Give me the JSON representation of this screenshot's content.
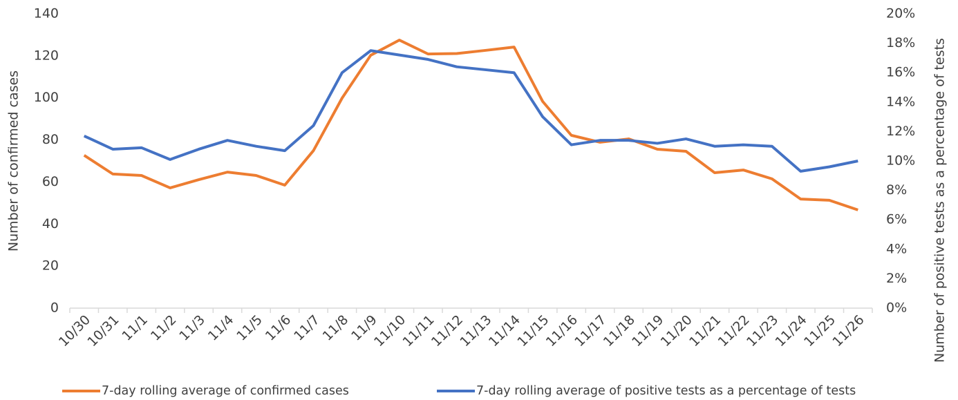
{
  "chart_data": {
    "type": "line",
    "y_label": "Number of confirmed cases",
    "y2_label": "Number of positive tests as a percentage of tests",
    "categories": [
      "10/30",
      "10/31",
      "11/1",
      "11/2",
      "11/3",
      "11/4",
      "11/5",
      "11/6",
      "11/7",
      "11/8",
      "11/9",
      "11/10",
      "11/11",
      "11/12",
      "11/13",
      "11/14",
      "11/15",
      "11/16",
      "11/17",
      "11/18",
      "11/19",
      "11/20",
      "11/21",
      "11/22",
      "11/23",
      "11/24",
      "11/25",
      "11/26"
    ],
    "series": [
      {
        "name": "7-day rolling average of confirmed cases",
        "color": "#ed7d31",
        "axis": "y",
        "values": [
          72.7,
          63.8,
          63.1,
          57.2,
          61.1,
          64.7,
          63.1,
          58.5,
          74.9,
          99.9,
          120.3,
          127.5,
          120.9,
          121.1,
          122.6,
          124.2,
          98.3,
          82.2,
          78.9,
          80.5,
          75.6,
          74.6,
          64.4,
          65.7,
          61.5,
          51.9,
          51.3,
          46.7
        ]
      },
      {
        "name": "7-day rolling average of positive tests as a percentage of tests",
        "color": "#4472c4",
        "axis": "y2",
        "values": [
          11.7,
          10.8,
          10.9,
          10.1,
          10.8,
          11.4,
          11.0,
          10.7,
          12.4,
          16.0,
          17.5,
          17.2,
          16.9,
          16.4,
          16.2,
          16.0,
          13.0,
          11.1,
          11.4,
          11.4,
          11.2,
          11.5,
          11.0,
          11.1,
          11.0,
          9.3,
          9.6,
          10.0
        ]
      }
    ],
    "ylim": [
      0,
      140
    ],
    "yticks": [
      0,
      20,
      40,
      60,
      80,
      100,
      120,
      140
    ],
    "y2lim": [
      0,
      20
    ],
    "y2ticks": [
      {
        "value": 0,
        "label": "0%"
      },
      {
        "value": 2,
        "label": "2%"
      },
      {
        "value": 4,
        "label": "4%"
      },
      {
        "value": 6,
        "label": "6%"
      },
      {
        "value": 8,
        "label": "8%"
      },
      {
        "value": 10,
        "label": "10%"
      },
      {
        "value": 12,
        "label": "12%"
      },
      {
        "value": 14,
        "label": "14%"
      },
      {
        "value": 16,
        "label": "16%"
      },
      {
        "value": 18,
        "label": "18%"
      },
      {
        "value": 20,
        "label": "20%"
      }
    ],
    "grid": false,
    "legend": "bottom"
  }
}
